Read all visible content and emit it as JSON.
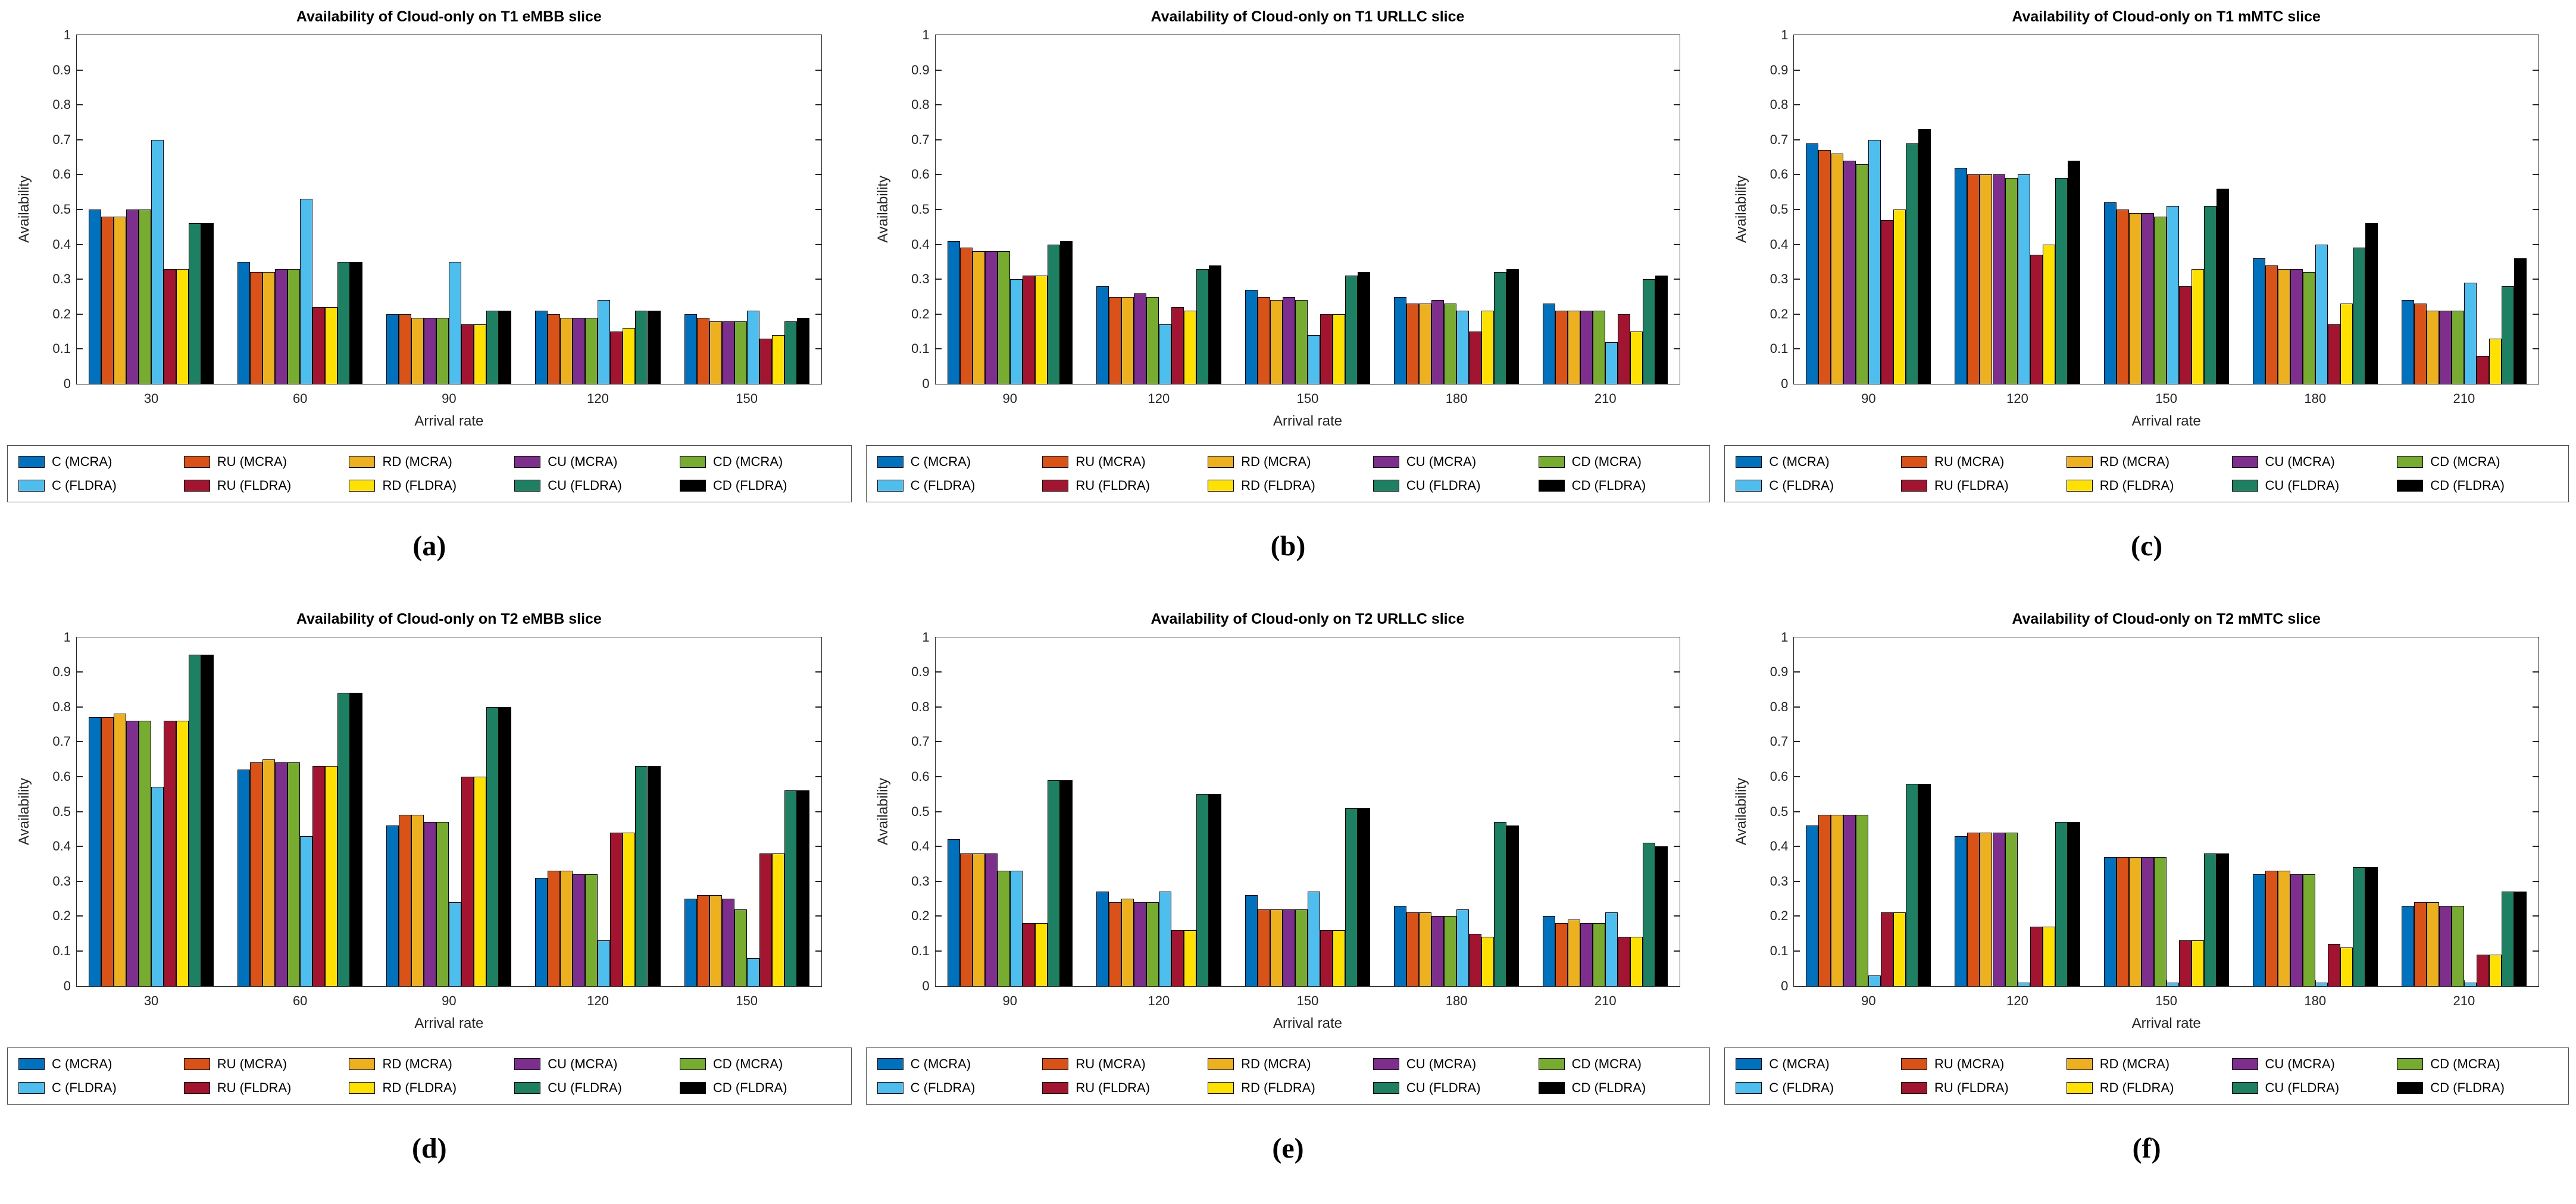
{
  "page": {
    "background": "#ffffff"
  },
  "chart_data": {
    "type": "bar",
    "grid": false,
    "legend_position": "below, boxed, 5 columns x 2 rows",
    "xlabel": "Arrival rate",
    "ylabel": "Availability",
    "ylim": [
      0,
      1
    ],
    "yticks": [
      0,
      0.1,
      0.2,
      0.3,
      0.4,
      0.5,
      0.6,
      0.7,
      0.8,
      0.9,
      1
    ],
    "ytick_labels": [
      "0",
      "0.1",
      "0.2",
      "0.3",
      "0.4",
      "0.5",
      "0.6",
      "0.7",
      "0.8",
      "0.9",
      "1"
    ],
    "series": [
      {
        "name": "C (MCRA)",
        "color": "#0072BD"
      },
      {
        "name": "RU (MCRA)",
        "color": "#D95319"
      },
      {
        "name": "RD (MCRA)",
        "color": "#EDB120"
      },
      {
        "name": "CU (MCRA)",
        "color": "#7E2F8E"
      },
      {
        "name": "CD (MCRA)",
        "color": "#77AC30"
      },
      {
        "name": "C (FLDRA)",
        "color": "#4DBEEE"
      },
      {
        "name": "RU (FLDRA)",
        "color": "#A2142F"
      },
      {
        "name": "RD (FLDRA)",
        "color": "#FFE100"
      },
      {
        "name": "CU (FLDRA)",
        "color": "#1D8062"
      },
      {
        "name": "CD (FLDRA)",
        "color": "#000000"
      }
    ],
    "charts": [
      {
        "label": "(a)",
        "title": "Availability of Cloud-only on T1 eMBB slice",
        "categories": [
          30,
          60,
          90,
          120,
          150
        ],
        "values": [
          [
            0.5,
            0.35,
            0.2,
            0.21,
            0.2
          ],
          [
            0.48,
            0.32,
            0.2,
            0.2,
            0.19
          ],
          [
            0.48,
            0.32,
            0.19,
            0.19,
            0.18
          ],
          [
            0.5,
            0.33,
            0.19,
            0.19,
            0.18
          ],
          [
            0.5,
            0.33,
            0.19,
            0.19,
            0.18
          ],
          [
            0.7,
            0.53,
            0.35,
            0.24,
            0.21
          ],
          [
            0.33,
            0.22,
            0.17,
            0.15,
            0.13
          ],
          [
            0.33,
            0.22,
            0.17,
            0.16,
            0.14
          ],
          [
            0.46,
            0.35,
            0.21,
            0.21,
            0.18
          ],
          [
            0.46,
            0.35,
            0.21,
            0.21,
            0.19
          ]
        ]
      },
      {
        "label": "(b)",
        "title": "Availability of Cloud-only on T1 URLLC slice",
        "categories": [
          90,
          120,
          150,
          180,
          210
        ],
        "values": [
          [
            0.41,
            0.28,
            0.27,
            0.25,
            0.23
          ],
          [
            0.39,
            0.25,
            0.25,
            0.23,
            0.21
          ],
          [
            0.38,
            0.25,
            0.24,
            0.23,
            0.21
          ],
          [
            0.38,
            0.26,
            0.25,
            0.24,
            0.21
          ],
          [
            0.38,
            0.25,
            0.24,
            0.23,
            0.21
          ],
          [
            0.3,
            0.17,
            0.14,
            0.21,
            0.12
          ],
          [
            0.31,
            0.22,
            0.2,
            0.15,
            0.2
          ],
          [
            0.31,
            0.21,
            0.2,
            0.21,
            0.15
          ],
          [
            0.4,
            0.33,
            0.31,
            0.32,
            0.3
          ],
          [
            0.41,
            0.34,
            0.32,
            0.33,
            0.31
          ]
        ]
      },
      {
        "label": "(c)",
        "title": "Availability of Cloud-only on T1 mMTC slice",
        "categories": [
          90,
          120,
          150,
          180,
          210
        ],
        "values": [
          [
            0.69,
            0.62,
            0.52,
            0.36,
            0.24
          ],
          [
            0.67,
            0.6,
            0.5,
            0.34,
            0.23
          ],
          [
            0.66,
            0.6,
            0.49,
            0.33,
            0.21
          ],
          [
            0.64,
            0.6,
            0.49,
            0.33,
            0.21
          ],
          [
            0.63,
            0.59,
            0.48,
            0.32,
            0.21
          ],
          [
            0.7,
            0.6,
            0.51,
            0.4,
            0.29
          ],
          [
            0.47,
            0.37,
            0.28,
            0.17,
            0.08
          ],
          [
            0.5,
            0.4,
            0.33,
            0.23,
            0.13
          ],
          [
            0.69,
            0.59,
            0.51,
            0.39,
            0.28
          ],
          [
            0.73,
            0.64,
            0.56,
            0.46,
            0.36
          ]
        ]
      },
      {
        "label": "(d)",
        "title": "Availability of Cloud-only on T2 eMBB slice",
        "categories": [
          30,
          60,
          90,
          120,
          150
        ],
        "values": [
          [
            0.77,
            0.62,
            0.46,
            0.31,
            0.25
          ],
          [
            0.77,
            0.64,
            0.49,
            0.33,
            0.26
          ],
          [
            0.78,
            0.65,
            0.49,
            0.33,
            0.26
          ],
          [
            0.76,
            0.64,
            0.47,
            0.32,
            0.25
          ],
          [
            0.76,
            0.64,
            0.47,
            0.32,
            0.22
          ],
          [
            0.57,
            0.43,
            0.24,
            0.13,
            0.08
          ],
          [
            0.76,
            0.63,
            0.6,
            0.44,
            0.38
          ],
          [
            0.76,
            0.63,
            0.6,
            0.44,
            0.38
          ],
          [
            0.95,
            0.84,
            0.8,
            0.63,
            0.56
          ],
          [
            0.95,
            0.84,
            0.8,
            0.63,
            0.56
          ]
        ]
      },
      {
        "label": "(e)",
        "title": "Availability of Cloud-only on T2 URLLC slice",
        "categories": [
          90,
          120,
          150,
          180,
          210
        ],
        "values": [
          [
            0.42,
            0.27,
            0.26,
            0.23,
            0.2
          ],
          [
            0.38,
            0.24,
            0.22,
            0.21,
            0.18
          ],
          [
            0.38,
            0.25,
            0.22,
            0.21,
            0.19
          ],
          [
            0.38,
            0.24,
            0.22,
            0.2,
            0.18
          ],
          [
            0.33,
            0.24,
            0.22,
            0.2,
            0.18
          ],
          [
            0.33,
            0.27,
            0.27,
            0.22,
            0.21
          ],
          [
            0.18,
            0.16,
            0.16,
            0.15,
            0.14
          ],
          [
            0.18,
            0.16,
            0.16,
            0.14,
            0.14
          ],
          [
            0.59,
            0.55,
            0.51,
            0.47,
            0.41
          ],
          [
            0.59,
            0.55,
            0.51,
            0.46,
            0.4
          ]
        ]
      },
      {
        "label": "(f)",
        "title": "Availability of Cloud-only on T2 mMTC slice",
        "categories": [
          90,
          120,
          150,
          180,
          210
        ],
        "values": [
          [
            0.46,
            0.43,
            0.37,
            0.32,
            0.23
          ],
          [
            0.49,
            0.44,
            0.37,
            0.33,
            0.24
          ],
          [
            0.49,
            0.44,
            0.37,
            0.33,
            0.24
          ],
          [
            0.49,
            0.44,
            0.37,
            0.32,
            0.23
          ],
          [
            0.49,
            0.44,
            0.37,
            0.32,
            0.23
          ],
          [
            0.03,
            0.01,
            0.01,
            0.01,
            0.01
          ],
          [
            0.21,
            0.17,
            0.13,
            0.12,
            0.09
          ],
          [
            0.21,
            0.17,
            0.13,
            0.11,
            0.09
          ],
          [
            0.58,
            0.47,
            0.38,
            0.34,
            0.27
          ],
          [
            0.58,
            0.47,
            0.38,
            0.34,
            0.27
          ]
        ]
      }
    ]
  }
}
